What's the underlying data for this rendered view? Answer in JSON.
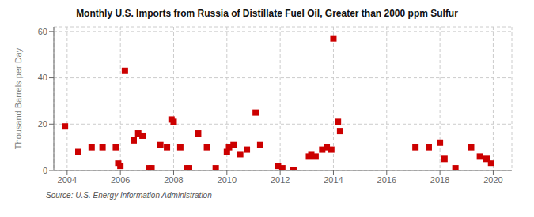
{
  "chart_data": {
    "type": "scatter",
    "title": "Monthly U.S. Imports from Russia of Distillate Fuel Oil, Greater than 2000 ppm Sulfur",
    "ylabel": "Thousand Barrels per Day",
    "annotations": [
      "Source: U.S. Energy Information Administration"
    ],
    "x": [
      2003.92,
      2004.42,
      2004.92,
      2005.33,
      2005.83,
      2005.92,
      2006.0,
      2006.17,
      2006.5,
      2006.67,
      2006.83,
      2007.08,
      2007.17,
      2007.5,
      2007.75,
      2007.92,
      2008.0,
      2008.25,
      2008.5,
      2008.58,
      2008.92,
      2009.25,
      2009.58,
      2010.0,
      2010.08,
      2010.25,
      2010.5,
      2010.75,
      2011.08,
      2011.25,
      2011.92,
      2012.08,
      2012.5,
      2013.08,
      2013.17,
      2013.33,
      2013.58,
      2013.75,
      2013.92,
      2014.0,
      2014.17,
      2014.25,
      2017.08,
      2017.58,
      2018.0,
      2018.17,
      2018.58,
      2019.17,
      2019.5,
      2019.75,
      2019.92
    ],
    "values": [
      19,
      8,
      10,
      10,
      10,
      3,
      2,
      43,
      13,
      16,
      15,
      1,
      1,
      11,
      10,
      22,
      21,
      10,
      1,
      1,
      16,
      10,
      1,
      8,
      10,
      11,
      7,
      9,
      25,
      11,
      2,
      1,
      0,
      6,
      7,
      6,
      9,
      10,
      9,
      57,
      21,
      17,
      10,
      10,
      12,
      5,
      1,
      10,
      6,
      5,
      3
    ],
    "color": "#cc0000",
    "marker": "square",
    "xlim": [
      2003.5,
      2020.7
    ],
    "ylim": [
      0,
      62
    ],
    "xticks": [
      2004,
      2006,
      2008,
      2010,
      2012,
      2014,
      2016,
      2018,
      2020
    ],
    "yticks": [
      0,
      20,
      40,
      60
    ],
    "grid": true
  }
}
